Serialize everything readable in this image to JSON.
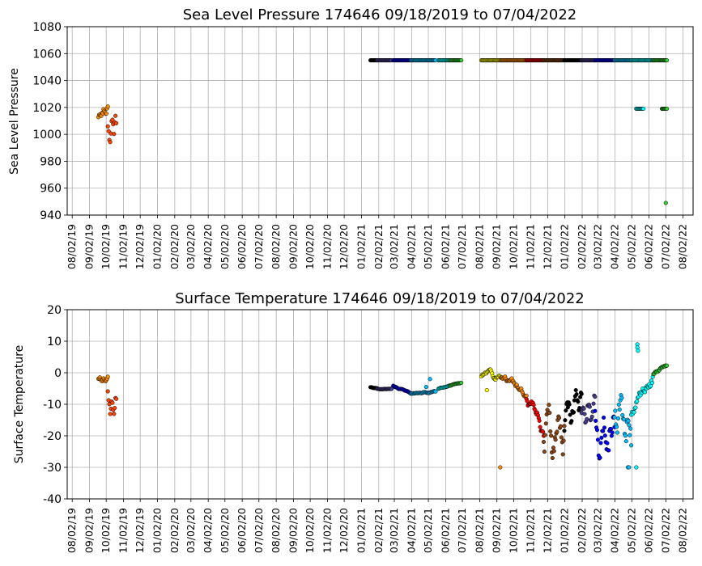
{
  "chart_data": [
    {
      "type": "scatter",
      "title": "Sea Level Pressure 174646  09/18/2019 to 07/04/2022",
      "xlabel": "",
      "ylabel": "Sea Level Pressure",
      "ylim": [
        940,
        1080
      ],
      "yticks": [
        940,
        960,
        980,
        1000,
        1020,
        1040,
        1060,
        1080
      ],
      "grid": true,
      "x_ticks": [
        "08/02/19",
        "09/02/19",
        "10/02/19",
        "11/02/19",
        "12/02/19",
        "01/02/20",
        "02/02/20",
        "03/02/20",
        "04/02/20",
        "05/02/20",
        "06/02/20",
        "07/02/20",
        "08/02/20",
        "09/02/20",
        "10/02/20",
        "11/02/20",
        "12/02/20",
        "01/02/21",
        "02/02/21",
        "03/02/21",
        "04/02/21",
        "05/02/21",
        "06/02/21",
        "07/02/21",
        "08/02/21",
        "09/02/21",
        "10/02/21",
        "11/02/21",
        "12/02/21",
        "01/02/22",
        "02/02/22",
        "03/02/22",
        "04/02/22",
        "05/02/22",
        "06/02/22",
        "07/02/22",
        "08/02/22"
      ],
      "segments": [
        {
          "start": "2019-09-18",
          "end": "2019-10-05",
          "color": "#ff8c00",
          "pattern": "wiggle",
          "y0": 1015,
          "amp": 5
        },
        {
          "start": "2019-10-05",
          "end": "2019-10-20",
          "color": "#ff4500",
          "pattern": "wiggle",
          "y0": 1008,
          "amp": 14
        },
        {
          "start": "2021-01-18",
          "end": "2021-01-30",
          "color": "#000000",
          "pattern": "flat",
          "y0": 1055,
          "amp": 0
        },
        {
          "start": "2021-01-30",
          "end": "2021-02-25",
          "color": "#483d8b",
          "pattern": "flat",
          "y0": 1055,
          "amp": 0
        },
        {
          "start": "2021-02-28",
          "end": "2021-03-31",
          "color": "#0000ff",
          "pattern": "flat",
          "y0": 1055,
          "amp": 0
        },
        {
          "start": "2021-04-01",
          "end": "2021-05-15",
          "color": "#00bfff",
          "pattern": "flat",
          "y0": 1055,
          "amp": 0
        },
        {
          "start": "2021-05-20",
          "end": "2021-06-10",
          "color": "#00ffff",
          "pattern": "flat",
          "y0": 1055,
          "amp": 0
        },
        {
          "start": "2021-06-10",
          "end": "2021-06-30",
          "color": "#32cd32",
          "pattern": "flat",
          "y0": 1055,
          "amp": 0
        },
        {
          "start": "2021-08-05",
          "end": "2021-09-10",
          "color": "#ffff00",
          "pattern": "flat",
          "y0": 1055,
          "amp": 0
        },
        {
          "start": "2021-09-10",
          "end": "2021-10-25",
          "color": "#ff8c00",
          "pattern": "flat",
          "y0": 1055,
          "amp": 0
        },
        {
          "start": "2021-10-25",
          "end": "2021-11-25",
          "color": "#ff0000",
          "pattern": "flat",
          "y0": 1055,
          "amp": 0
        },
        {
          "start": "2021-11-25",
          "end": "2022-01-01",
          "color": "#8b4513",
          "pattern": "flat",
          "y0": 1055,
          "amp": 0
        },
        {
          "start": "2022-01-01",
          "end": "2022-02-01",
          "color": "#000000",
          "pattern": "flat",
          "y0": 1055,
          "amp": 0
        },
        {
          "start": "2022-02-01",
          "end": "2022-02-25",
          "color": "#483d8b",
          "pattern": "flat",
          "y0": 1055,
          "amp": 0
        },
        {
          "start": "2022-02-25",
          "end": "2022-04-01",
          "color": "#0000ff",
          "pattern": "flat",
          "y0": 1055,
          "amp": 0
        },
        {
          "start": "2022-04-01",
          "end": "2022-05-01",
          "color": "#00bfff",
          "pattern": "flat",
          "y0": 1055,
          "amp": 0
        },
        {
          "start": "2022-05-01",
          "end": "2022-06-10",
          "color": "#00ffff",
          "pattern": "flat",
          "y0": 1055,
          "amp": 0
        },
        {
          "start": "2022-06-10",
          "end": "2022-07-04",
          "color": "#32cd32",
          "pattern": "flat",
          "y0": 1055,
          "amp": 0
        },
        {
          "start": "2022-05-10",
          "end": "2022-05-23",
          "color": "#00ffff",
          "pattern": "flat",
          "y0": 1019,
          "amp": 0
        },
        {
          "start": "2022-06-25",
          "end": "2022-07-04",
          "color": "#32cd32",
          "pattern": "flat",
          "y0": 1019,
          "amp": 0
        }
      ],
      "points": [
        {
          "date": "2022-07-02",
          "value": 949,
          "color": "#32cd32"
        }
      ]
    },
    {
      "type": "scatter",
      "title": "Surface Temperature 174646  09/18/2019 to 07/04/2022",
      "xlabel": "",
      "ylabel": "Surface Temperature",
      "ylim": [
        -40,
        20
      ],
      "yticks": [
        -40,
        -30,
        -20,
        -10,
        0,
        10,
        20
      ],
      "grid": true,
      "x_ticks": [
        "08/02/19",
        "09/02/19",
        "10/02/19",
        "11/02/19",
        "12/02/19",
        "01/02/20",
        "02/02/20",
        "03/02/20",
        "04/02/20",
        "05/02/20",
        "06/02/20",
        "07/02/20",
        "08/02/20",
        "09/02/20",
        "10/02/20",
        "11/02/20",
        "12/02/20",
        "01/02/21",
        "02/02/21",
        "03/02/21",
        "04/02/21",
        "05/02/21",
        "06/02/21",
        "07/02/21",
        "08/02/21",
        "09/02/21",
        "10/02/21",
        "11/02/21",
        "12/02/21",
        "01/02/22",
        "02/02/22",
        "03/02/22",
        "04/02/22",
        "05/02/22",
        "06/02/22",
        "07/02/22",
        "08/02/22"
      ],
      "segments": [
        {
          "start": "2019-09-18",
          "end": "2019-10-05",
          "color": "#ff8c00",
          "pattern": "wiggle",
          "y0": -1.5,
          "amp": 1
        },
        {
          "start": "2019-10-05",
          "end": "2019-10-20",
          "color": "#ff4500",
          "pattern": "wiggle",
          "y0": -5,
          "amp": 6
        },
        {
          "start": "2021-01-18",
          "end": "2021-01-30",
          "color": "#000000",
          "pattern": "ramp",
          "y0": -4.5,
          "y1": -5,
          "amp": 0.4
        },
        {
          "start": "2021-01-30",
          "end": "2021-02-25",
          "color": "#483d8b",
          "pattern": "ramp",
          "y0": -5,
          "y1": -5.2,
          "amp": 0.4
        },
        {
          "start": "2021-02-28",
          "end": "2021-03-31",
          "color": "#0000ff",
          "pattern": "ramp",
          "y0": -4,
          "y1": -6.5,
          "amp": 0.6
        },
        {
          "start": "2021-04-01",
          "end": "2021-05-15",
          "color": "#00bfff",
          "pattern": "ramp",
          "y0": -6.5,
          "y1": -6,
          "amp": 0.6
        },
        {
          "start": "2021-05-20",
          "end": "2021-06-10",
          "color": "#00ffff",
          "pattern": "ramp",
          "y0": -5,
          "y1": -4,
          "amp": 0.4
        },
        {
          "start": "2021-06-10",
          "end": "2021-06-30",
          "color": "#32cd32",
          "pattern": "ramp",
          "y0": -4,
          "y1": -3,
          "amp": 0.4
        },
        {
          "start": "2021-08-05",
          "end": "2021-09-10",
          "color": "#ffff00",
          "pattern": "wiggle",
          "y0": -1,
          "amp": 1.5
        },
        {
          "start": "2021-09-10",
          "end": "2021-10-25",
          "color": "#ff8c00",
          "pattern": "ramp",
          "y0": -1,
          "y1": -7,
          "amp": 3
        },
        {
          "start": "2021-10-25",
          "end": "2021-11-25",
          "color": "#ff0000",
          "pattern": "ramp",
          "y0": -7,
          "y1": -20,
          "amp": 6
        },
        {
          "start": "2021-11-25",
          "end": "2022-01-01",
          "color": "#8b4513",
          "pattern": "wiggle",
          "y0": -14,
          "amp": 10
        },
        {
          "start": "2022-01-01",
          "end": "2022-02-01",
          "color": "#000000",
          "pattern": "wiggle",
          "y0": -14,
          "amp": 7
        },
        {
          "start": "2022-02-01",
          "end": "2022-02-25",
          "color": "#483d8b",
          "pattern": "wiggle",
          "y0": -11,
          "amp": 6
        },
        {
          "start": "2022-02-25",
          "end": "2022-04-01",
          "color": "#0000ff",
          "pattern": "wiggle",
          "y0": -11,
          "amp": 12
        },
        {
          "start": "2022-04-01",
          "end": "2022-05-01",
          "color": "#00bfff",
          "pattern": "wiggle",
          "y0": -12,
          "amp": 10
        },
        {
          "start": "2022-05-01",
          "end": "2022-06-10",
          "color": "#00ffff",
          "pattern": "ramp",
          "y0": -12,
          "y1": 0,
          "amp": 6
        },
        {
          "start": "2022-06-10",
          "end": "2022-07-04",
          "color": "#32cd32",
          "pattern": "ramp",
          "y0": 0,
          "y1": 3,
          "amp": 2
        }
      ],
      "points": [
        {
          "date": "2021-05-05",
          "value": -2,
          "color": "#00bfff"
        },
        {
          "date": "2021-04-28",
          "value": -4.5,
          "color": "#00bfff"
        },
        {
          "date": "2021-08-15",
          "value": -5.5,
          "color": "#ffff00"
        },
        {
          "date": "2021-09-08",
          "value": -30,
          "color": "#ff8c00"
        },
        {
          "date": "2022-04-25",
          "value": -30,
          "color": "#00bfff"
        },
        {
          "date": "2022-04-27",
          "value": -30,
          "color": "#00bfff"
        },
        {
          "date": "2022-05-10",
          "value": -30,
          "color": "#00ffff"
        },
        {
          "date": "2022-05-12",
          "value": 9,
          "color": "#00ffff"
        },
        {
          "date": "2022-05-12",
          "value": 8,
          "color": "#00ffff"
        },
        {
          "date": "2022-05-13",
          "value": 7,
          "color": "#00ffff"
        }
      ]
    }
  ]
}
